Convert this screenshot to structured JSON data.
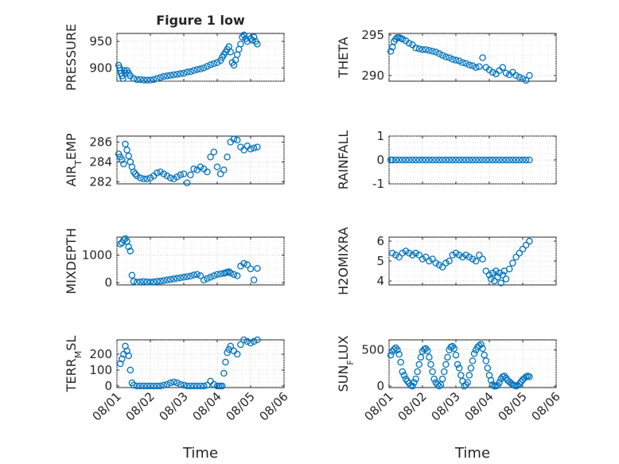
{
  "figure": {
    "title": "Figure 1 low",
    "xlabel": "Time"
  },
  "chart_data": [
    {
      "type": "scatter",
      "ylabel": "PRESSURE",
      "ylim": [
        875,
        965
      ],
      "yticks": [
        900,
        950
      ],
      "xlim": [
        0,
        5
      ],
      "xtick_labels": [
        "08/01",
        "08/02",
        "08/03",
        "08/04",
        "08/05",
        "08/06"
      ],
      "x": [
        0.05,
        0.08,
        0.1,
        0.12,
        0.15,
        0.18,
        0.22,
        0.25,
        0.3,
        0.35,
        0.4,
        0.5,
        0.6,
        0.7,
        0.8,
        0.9,
        1.0,
        1.1,
        1.2,
        1.3,
        1.4,
        1.5,
        1.6,
        1.7,
        1.8,
        1.9,
        2.0,
        2.1,
        2.2,
        2.3,
        2.4,
        2.5,
        2.6,
        2.7,
        2.8,
        2.9,
        3.0,
        3.1,
        3.15,
        3.2,
        3.25,
        3.3,
        3.35,
        3.4,
        3.45,
        3.5,
        3.55,
        3.6,
        3.65,
        3.7,
        3.75,
        3.8,
        3.85,
        3.9,
        3.95,
        4.0,
        4.05,
        4.1,
        4.15,
        4.2
      ],
      "y": [
        905,
        900,
        895,
        890,
        885,
        880,
        895,
        890,
        895,
        890,
        885,
        880,
        878,
        878,
        877,
        877,
        877,
        878,
        880,
        882,
        884,
        885,
        886,
        887,
        888,
        889,
        890,
        892,
        893,
        895,
        897,
        898,
        900,
        903,
        906,
        908,
        910,
        914,
        920,
        925,
        930,
        935,
        940,
        930,
        910,
        905,
        915,
        925,
        935,
        945,
        958,
        962,
        955,
        950,
        960,
        955,
        952,
        958,
        950,
        945
      ]
    },
    {
      "type": "scatter",
      "ylabel": "THETA",
      "ylim": [
        289.3,
        295.2
      ],
      "yticks": [
        290,
        295
      ],
      "xlim": [
        0,
        5
      ],
      "xtick_labels": [
        "08/01",
        "08/02",
        "08/03",
        "08/04",
        "08/05",
        "08/06"
      ],
      "x": [
        0.05,
        0.1,
        0.15,
        0.2,
        0.25,
        0.3,
        0.35,
        0.4,
        0.5,
        0.6,
        0.7,
        0.8,
        0.9,
        1.0,
        1.1,
        1.2,
        1.3,
        1.4,
        1.5,
        1.6,
        1.7,
        1.8,
        1.9,
        2.0,
        2.1,
        2.2,
        2.3,
        2.4,
        2.5,
        2.6,
        2.7,
        2.8,
        2.9,
        3.0,
        3.1,
        3.2,
        3.3,
        3.4,
        3.5,
        3.6,
        3.7,
        3.8,
        3.9,
        4.0,
        4.1,
        4.2
      ],
      "y": [
        293.0,
        293.5,
        294.2,
        294.5,
        294.7,
        294.7,
        294.6,
        294.5,
        294.3,
        294.0,
        293.8,
        293.4,
        293.3,
        293.2,
        293.2,
        293.1,
        293.0,
        292.9,
        292.7,
        292.5,
        292.3,
        292.2,
        292.0,
        291.9,
        291.8,
        291.6,
        291.5,
        291.3,
        291.2,
        291.0,
        291.1,
        292.2,
        291.0,
        290.7,
        290.4,
        290.2,
        290.6,
        291.0,
        290.3,
        290.1,
        290.4,
        290.0,
        289.8,
        289.6,
        289.4,
        290.0
      ]
    },
    {
      "type": "scatter",
      "ylabel": "AIR_TEMP",
      "ylim": [
        281.8,
        286.6
      ],
      "yticks": [
        282,
        284,
        286
      ],
      "xlim": [
        0,
        5
      ],
      "xtick_labels": [
        "08/01",
        "08/02",
        "08/03",
        "08/04",
        "08/05",
        "08/06"
      ],
      "x": [
        0.05,
        0.1,
        0.15,
        0.2,
        0.25,
        0.3,
        0.35,
        0.4,
        0.45,
        0.5,
        0.55,
        0.6,
        0.7,
        0.8,
        0.9,
        1.0,
        1.1,
        1.2,
        1.3,
        1.4,
        1.5,
        1.6,
        1.7,
        1.8,
        1.9,
        2.0,
        2.1,
        2.2,
        2.3,
        2.4,
        2.5,
        2.6,
        2.7,
        2.8,
        2.9,
        3.0,
        3.1,
        3.2,
        3.3,
        3.4,
        3.5,
        3.6,
        3.7,
        3.8,
        3.9,
        4.0,
        4.1,
        4.2
      ],
      "y": [
        284.8,
        284.5,
        284.2,
        283.8,
        285.8,
        285.2,
        284.6,
        284.0,
        283.5,
        283.0,
        282.8,
        282.6,
        282.4,
        282.3,
        282.3,
        282.4,
        282.6,
        282.9,
        283.0,
        282.8,
        282.6,
        282.4,
        282.3,
        282.5,
        282.7,
        282.8,
        281.9,
        282.7,
        283.3,
        283.2,
        283.5,
        283.3,
        283.0,
        284.5,
        285.0,
        283.5,
        282.8,
        283.2,
        284.5,
        286.0,
        286.3,
        286.2,
        285.5,
        285.2,
        285.6,
        285.3,
        285.4,
        285.5
      ]
    },
    {
      "type": "scatter",
      "ylabel": "RAINFALL",
      "ylim": [
        -1,
        1
      ],
      "yticks": [
        -1,
        0,
        1
      ],
      "xlim": [
        0,
        5
      ],
      "xtick_labels": [
        "08/01",
        "08/02",
        "08/03",
        "08/04",
        "08/05",
        "08/06"
      ],
      "x": [
        0.05,
        0.1,
        0.2,
        0.3,
        0.4,
        0.5,
        0.6,
        0.7,
        0.8,
        0.9,
        1.0,
        1.1,
        1.2,
        1.3,
        1.4,
        1.5,
        1.6,
        1.7,
        1.8,
        1.9,
        2.0,
        2.1,
        2.2,
        2.3,
        2.4,
        2.5,
        2.6,
        2.7,
        2.8,
        2.9,
        3.0,
        3.1,
        3.2,
        3.3,
        3.4,
        3.5,
        3.6,
        3.7,
        3.8,
        3.9,
        4.0,
        4.1,
        4.2
      ],
      "y": [
        0,
        0,
        0,
        0,
        0,
        0,
        0,
        0,
        0,
        0,
        0,
        0,
        0,
        0,
        0,
        0,
        0,
        0,
        0,
        0,
        0,
        0,
        0,
        0,
        0,
        0,
        0,
        0,
        0,
        0,
        0,
        0,
        0,
        0,
        0,
        0,
        0,
        0,
        0,
        0,
        0,
        0,
        0
      ]
    },
    {
      "type": "scatter",
      "ylabel": "MIXDEPTH",
      "ylim": [
        -80,
        1650
      ],
      "yticks": [
        0,
        1000
      ],
      "xlim": [
        0,
        5
      ],
      "xtick_labels": [
        "08/01",
        "08/02",
        "08/03",
        "08/04",
        "08/05",
        "08/06"
      ],
      "x": [
        0.1,
        0.15,
        0.2,
        0.25,
        0.3,
        0.35,
        0.4,
        0.45,
        0.5,
        0.6,
        0.7,
        0.8,
        0.9,
        1.0,
        1.1,
        1.2,
        1.3,
        1.4,
        1.5,
        1.6,
        1.7,
        1.8,
        1.9,
        2.0,
        2.1,
        2.2,
        2.3,
        2.4,
        2.5,
        2.6,
        2.7,
        2.8,
        2.9,
        3.0,
        3.1,
        3.2,
        3.25,
        3.3,
        3.35,
        3.4,
        3.5,
        3.6,
        3.7,
        3.8,
        3.9,
        4.0,
        4.1,
        4.2
      ],
      "y": [
        1400,
        1450,
        1550,
        1600,
        1500,
        1300,
        1150,
        270,
        50,
        20,
        30,
        40,
        30,
        20,
        30,
        50,
        60,
        80,
        100,
        120,
        140,
        160,
        180,
        200,
        220,
        240,
        280,
        300,
        250,
        100,
        150,
        200,
        250,
        300,
        320,
        340,
        360,
        380,
        400,
        350,
        300,
        250,
        600,
        700,
        650,
        500,
        100,
        520
      ]
    },
    {
      "type": "scatter",
      "ylabel": "H2OMIXRA",
      "ylim": [
        3.8,
        6.2
      ],
      "yticks": [
        4,
        5,
        6
      ],
      "xlim": [
        0,
        5
      ],
      "xtick_labels": [
        "08/01",
        "08/02",
        "08/03",
        "08/04",
        "08/05",
        "08/06"
      ],
      "x": [
        0.1,
        0.2,
        0.3,
        0.4,
        0.5,
        0.6,
        0.7,
        0.8,
        0.9,
        1.0,
        1.1,
        1.2,
        1.3,
        1.4,
        1.5,
        1.6,
        1.7,
        1.8,
        1.9,
        2.0,
        2.1,
        2.2,
        2.3,
        2.4,
        2.5,
        2.6,
        2.7,
        2.8,
        2.9,
        3.0,
        3.05,
        3.1,
        3.15,
        3.2,
        3.25,
        3.3,
        3.35,
        3.4,
        3.45,
        3.5,
        3.6,
        3.7,
        3.8,
        3.9,
        4.0,
        4.1,
        4.2
      ],
      "y": [
        5.4,
        5.3,
        5.2,
        5.4,
        5.5,
        5.4,
        5.3,
        5.4,
        5.3,
        5.1,
        5.2,
        5.0,
        5.1,
        4.9,
        4.8,
        4.7,
        4.9,
        5.0,
        5.3,
        5.4,
        5.3,
        5.2,
        5.3,
        5.2,
        5.1,
        5.0,
        5.3,
        5.1,
        4.5,
        4.3,
        4.1,
        4.4,
        4.0,
        4.5,
        4.2,
        4.4,
        3.9,
        4.3,
        4.5,
        4.1,
        4.6,
        4.9,
        5.2,
        5.4,
        5.6,
        5.8,
        6.0
      ]
    },
    {
      "type": "scatter",
      "ylabel": "TERR_MSL",
      "ylim": [
        -10,
        290
      ],
      "yticks": [
        0,
        100,
        200
      ],
      "xlim": [
        0,
        5
      ],
      "xtick_labels": [
        "08/01",
        "08/02",
        "08/03",
        "08/04",
        "08/05",
        "08/06"
      ],
      "x": [
        0.1,
        0.15,
        0.2,
        0.25,
        0.3,
        0.35,
        0.4,
        0.45,
        0.5,
        0.6,
        0.7,
        0.8,
        0.9,
        1.0,
        1.1,
        1.2,
        1.3,
        1.4,
        1.5,
        1.6,
        1.7,
        1.8,
        1.9,
        2.0,
        2.1,
        2.2,
        2.3,
        2.4,
        2.5,
        2.6,
        2.7,
        2.8,
        2.9,
        3.0,
        3.05,
        3.1,
        3.15,
        3.2,
        3.25,
        3.3,
        3.35,
        3.4,
        3.5,
        3.6,
        3.7,
        3.8,
        3.9,
        4.0,
        4.1,
        4.2
      ],
      "y": [
        140,
        170,
        200,
        250,
        220,
        190,
        100,
        20,
        5,
        0,
        0,
        0,
        0,
        0,
        0,
        0,
        0,
        5,
        10,
        20,
        25,
        20,
        10,
        5,
        0,
        0,
        0,
        0,
        0,
        0,
        5,
        30,
        10,
        0,
        0,
        0,
        0,
        80,
        150,
        210,
        230,
        250,
        220,
        200,
        260,
        290,
        280,
        270,
        280,
        290
      ]
    },
    {
      "type": "scatter",
      "ylabel": "SUN_FLUX",
      "ylim": [
        -20,
        640
      ],
      "yticks": [
        0,
        500
      ],
      "xlim": [
        0,
        5
      ],
      "xtick_labels": [
        "08/01",
        "08/02",
        "08/03",
        "08/04",
        "08/05",
        "08/06"
      ],
      "x": [
        0.05,
        0.1,
        0.15,
        0.2,
        0.25,
        0.3,
        0.35,
        0.4,
        0.45,
        0.5,
        0.55,
        0.6,
        0.65,
        0.7,
        0.75,
        0.8,
        0.85,
        0.9,
        0.95,
        1.0,
        1.05,
        1.1,
        1.15,
        1.2,
        1.25,
        1.3,
        1.35,
        1.4,
        1.45,
        1.5,
        1.55,
        1.6,
        1.65,
        1.7,
        1.75,
        1.8,
        1.85,
        1.9,
        1.95,
        2.0,
        2.05,
        2.1,
        2.15,
        2.2,
        2.25,
        2.3,
        2.35,
        2.4,
        2.45,
        2.5,
        2.55,
        2.6,
        2.65,
        2.7,
        2.75,
        2.8,
        2.85,
        2.9,
        2.95,
        3.0,
        3.05,
        3.1,
        3.15,
        3.2,
        3.25,
        3.3,
        3.35,
        3.4,
        3.45,
        3.5,
        3.55,
        3.6,
        3.65,
        3.7,
        3.75,
        3.8,
        3.85,
        3.9,
        3.95,
        4.0,
        4.05,
        4.1,
        4.15,
        4.2
      ],
      "y": [
        430,
        480,
        510,
        530,
        500,
        440,
        330,
        200,
        150,
        100,
        70,
        40,
        10,
        0,
        50,
        100,
        200,
        300,
        400,
        480,
        510,
        520,
        490,
        400,
        300,
        200,
        100,
        50,
        20,
        0,
        20,
        100,
        200,
        300,
        400,
        500,
        540,
        550,
        520,
        430,
        300,
        250,
        150,
        70,
        0,
        20,
        50,
        150,
        250,
        350,
        450,
        500,
        540,
        560,
        580,
        520,
        430,
        350,
        250,
        150,
        80,
        20,
        0,
        0,
        10,
        50,
        100,
        130,
        140,
        110,
        80,
        60,
        40,
        20,
        10,
        0,
        10,
        30,
        60,
        90,
        110,
        130,
        140,
        130
      ]
    }
  ]
}
